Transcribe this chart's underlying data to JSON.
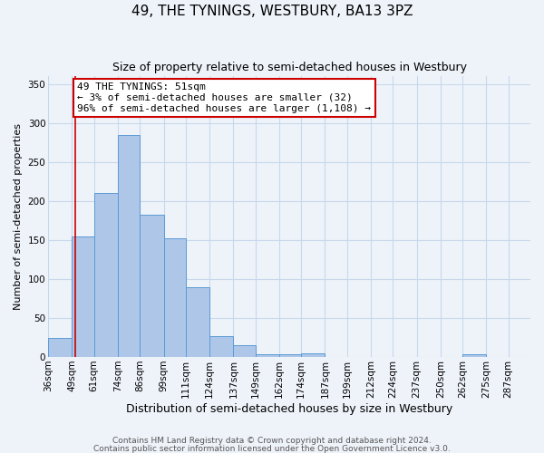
{
  "title": "49, THE TYNINGS, WESTBURY, BA13 3PZ",
  "subtitle": "Size of property relative to semi-detached houses in Westbury",
  "xlabel": "Distribution of semi-detached houses by size in Westbury",
  "ylabel": "Number of semi-detached properties",
  "bin_labels": [
    "36sqm",
    "49sqm",
    "61sqm",
    "74sqm",
    "86sqm",
    "99sqm",
    "111sqm",
    "124sqm",
    "137sqm",
    "149sqm",
    "162sqm",
    "174sqm",
    "187sqm",
    "199sqm",
    "212sqm",
    "224sqm",
    "237sqm",
    "250sqm",
    "262sqm",
    "275sqm",
    "287sqm"
  ],
  "bin_edges": [
    36,
    49,
    61,
    74,
    86,
    99,
    111,
    124,
    137,
    149,
    162,
    174,
    187,
    199,
    212,
    224,
    237,
    250,
    262,
    275,
    287
  ],
  "bar_values": [
    25,
    155,
    210,
    285,
    183,
    152,
    90,
    27,
    15,
    3,
    3,
    5,
    0,
    0,
    0,
    0,
    0,
    0,
    3,
    0,
    0
  ],
  "bar_color": "#aec6e8",
  "bar_edge_color": "#5b9bd5",
  "property_line_x": 51,
  "property_line_color": "#cc0000",
  "annotation_line1": "49 THE TYNINGS: 51sqm",
  "annotation_line2": "← 3% of semi-detached houses are smaller (32)",
  "annotation_line3": "96% of semi-detached houses are larger (1,108) →",
  "annotation_box_color": "#ffffff",
  "annotation_box_edge": "#cc0000",
  "ylim": [
    0,
    360
  ],
  "yticks": [
    0,
    50,
    100,
    150,
    200,
    250,
    300,
    350
  ],
  "footer1": "Contains HM Land Registry data © Crown copyright and database right 2024.",
  "footer2": "Contains public sector information licensed under the Open Government Licence v3.0.",
  "grid_color": "#c8d8ea",
  "background_color": "#eef3fa",
  "title_fontsize": 11,
  "subtitle_fontsize": 9,
  "xlabel_fontsize": 9,
  "ylabel_fontsize": 8,
  "tick_fontsize": 7.5,
  "footer_fontsize": 6.5
}
